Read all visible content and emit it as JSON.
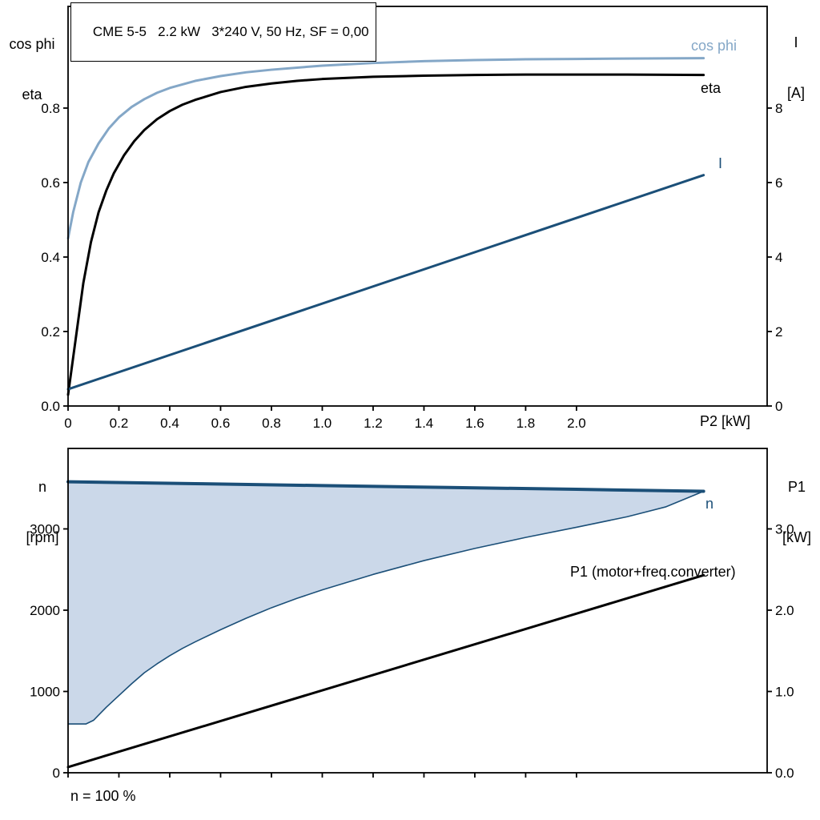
{
  "colors": {
    "light_blue": "#84A7C7",
    "dark_blue": "#1B4F78",
    "black": "#000000",
    "fill_blue": "#CBD8E9",
    "frame": "#000000"
  },
  "chart_data": [
    {
      "id": "motor-electrical-curves",
      "type": "line",
      "title": "CME 5-5   2.2 kW   3*240 V, 50 Hz, SF = 0,00",
      "x_axis": {
        "label": "P2 [kW]",
        "min": 0,
        "max": 2.75,
        "ticks": [
          0,
          0.2,
          0.4,
          0.6,
          0.8,
          1.0,
          1.2,
          1.4,
          1.6,
          1.8,
          2.0
        ],
        "tick_labels": [
          "0",
          "0.2",
          "0.4",
          "0.6",
          "0.8",
          "1.0",
          "1.2",
          "1.4",
          "1.6",
          "1.8",
          "2.0"
        ]
      },
      "left_axis": {
        "label_lines": [
          "cos phi",
          "eta"
        ],
        "min": 0,
        "max": 1.073,
        "ticks": [
          0,
          0.2,
          0.4,
          0.6,
          0.8
        ],
        "tick_labels": [
          "0.0",
          "0.2",
          "0.4",
          "0.6",
          "0.8"
        ]
      },
      "right_axis": {
        "label_lines": [
          "I",
          "[A]"
        ],
        "min": 0,
        "max": 10.73,
        "ticks": [
          0,
          2,
          4,
          6,
          8
        ],
        "tick_labels": [
          "0",
          "2",
          "4",
          "6",
          "8"
        ]
      },
      "grid": false,
      "series": [
        {
          "name": "cos phi",
          "axis": "left",
          "color": "light_blue",
          "width": 3,
          "points": [
            [
              0,
              0.45
            ],
            [
              0.02,
              0.52
            ],
            [
              0.05,
              0.6
            ],
            [
              0.08,
              0.655
            ],
            [
              0.12,
              0.705
            ],
            [
              0.16,
              0.745
            ],
            [
              0.2,
              0.775
            ],
            [
              0.25,
              0.803
            ],
            [
              0.3,
              0.824
            ],
            [
              0.35,
              0.841
            ],
            [
              0.4,
              0.854
            ],
            [
              0.5,
              0.873
            ],
            [
              0.6,
              0.886
            ],
            [
              0.7,
              0.896
            ],
            [
              0.8,
              0.903
            ],
            [
              1.0,
              0.914
            ],
            [
              1.2,
              0.921
            ],
            [
              1.4,
              0.926
            ],
            [
              1.6,
              0.929
            ],
            [
              1.8,
              0.931
            ],
            [
              2.0,
              0.932
            ],
            [
              2.2,
              0.933
            ],
            [
              2.5,
              0.934
            ]
          ]
        },
        {
          "name": "eta",
          "axis": "left",
          "color": "black",
          "width": 3,
          "points": [
            [
              0,
              0.03
            ],
            [
              0.03,
              0.18
            ],
            [
              0.06,
              0.33
            ],
            [
              0.09,
              0.44
            ],
            [
              0.12,
              0.52
            ],
            [
              0.15,
              0.578
            ],
            [
              0.18,
              0.625
            ],
            [
              0.22,
              0.673
            ],
            [
              0.26,
              0.711
            ],
            [
              0.3,
              0.741
            ],
            [
              0.35,
              0.77
            ],
            [
              0.4,
              0.792
            ],
            [
              0.45,
              0.809
            ],
            [
              0.5,
              0.822
            ],
            [
              0.6,
              0.843
            ],
            [
              0.7,
              0.857
            ],
            [
              0.8,
              0.866
            ],
            [
              0.9,
              0.873
            ],
            [
              1.0,
              0.878
            ],
            [
              1.2,
              0.884
            ],
            [
              1.4,
              0.887
            ],
            [
              1.6,
              0.889
            ],
            [
              1.8,
              0.89
            ],
            [
              2.0,
              0.89
            ],
            [
              2.2,
              0.89
            ],
            [
              2.5,
              0.889
            ]
          ]
        },
        {
          "name": "I",
          "axis": "right",
          "color": "dark_blue",
          "width": 3,
          "points": [
            [
              0,
              0.45
            ],
            [
              2.5,
              6.2
            ]
          ]
        }
      ]
    },
    {
      "id": "speed-power-curves",
      "type": "line",
      "title": "",
      "x_axis": {
        "label": "",
        "min": 0,
        "max": 2.75,
        "ticks": [
          0,
          0.2,
          0.4,
          0.6,
          0.8,
          1.0,
          1.2,
          1.4,
          1.6,
          1.8,
          2.0
        ],
        "tick_labels": [
          "",
          "",
          "",
          "",
          "",
          "",
          "",
          "",
          "",
          "",
          ""
        ]
      },
      "left_axis": {
        "label_lines": [
          "n",
          "[rpm]"
        ],
        "min": 0,
        "max": 3990,
        "ticks": [
          0,
          1000,
          2000,
          3000
        ],
        "tick_labels": [
          "0",
          "1000",
          "2000",
          "3000"
        ]
      },
      "right_axis": {
        "label_lines": [
          "P1",
          "[kW]"
        ],
        "min": 0,
        "max": 3.99,
        "ticks": [
          0,
          1,
          2,
          3
        ],
        "tick_labels": [
          "0.0",
          "1.0",
          "2.0",
          "3.0"
        ]
      },
      "grid": false,
      "series": [
        {
          "name": "",
          "type": "area_between",
          "axis": "left",
          "fill": "fill_blue",
          "color": "dark_blue",
          "upper": [
            [
              0,
              3580
            ],
            [
              0.5,
              3557
            ],
            [
              1.0,
              3533
            ],
            [
              1.5,
              3510
            ],
            [
              2.0,
              3487
            ],
            [
              2.5,
              3463
            ]
          ],
          "lower": [
            [
              0,
              600
            ],
            [
              0.07,
              600
            ],
            [
              0.1,
              645
            ],
            [
              0.15,
              805
            ],
            [
              0.2,
              950
            ],
            [
              0.25,
              1095
            ],
            [
              0.3,
              1230
            ],
            [
              0.35,
              1340
            ],
            [
              0.4,
              1440
            ],
            [
              0.45,
              1530
            ],
            [
              0.5,
              1610
            ],
            [
              0.6,
              1760
            ],
            [
              0.7,
              1900
            ],
            [
              0.8,
              2030
            ],
            [
              0.9,
              2145
            ],
            [
              1.0,
              2250
            ],
            [
              1.2,
              2440
            ],
            [
              1.4,
              2610
            ],
            [
              1.6,
              2760
            ],
            [
              1.8,
              2895
            ],
            [
              2.0,
              3020
            ],
            [
              2.2,
              3150
            ],
            [
              2.35,
              3270
            ],
            [
              2.5,
              3463
            ]
          ]
        },
        {
          "name": "n",
          "axis": "left",
          "color": "dark_blue",
          "width": 4,
          "points": [
            [
              0,
              3580
            ],
            [
              0.5,
              3557
            ],
            [
              1.0,
              3533
            ],
            [
              1.5,
              3510
            ],
            [
              2.0,
              3487
            ],
            [
              2.5,
              3463
            ]
          ]
        },
        {
          "name": "P1 (motor+freq.converter)",
          "axis": "right",
          "color": "black",
          "width": 3,
          "points": [
            [
              0,
              0.07
            ],
            [
              2.5,
              2.43
            ]
          ]
        }
      ],
      "footnote": "n = 100 %"
    }
  ]
}
